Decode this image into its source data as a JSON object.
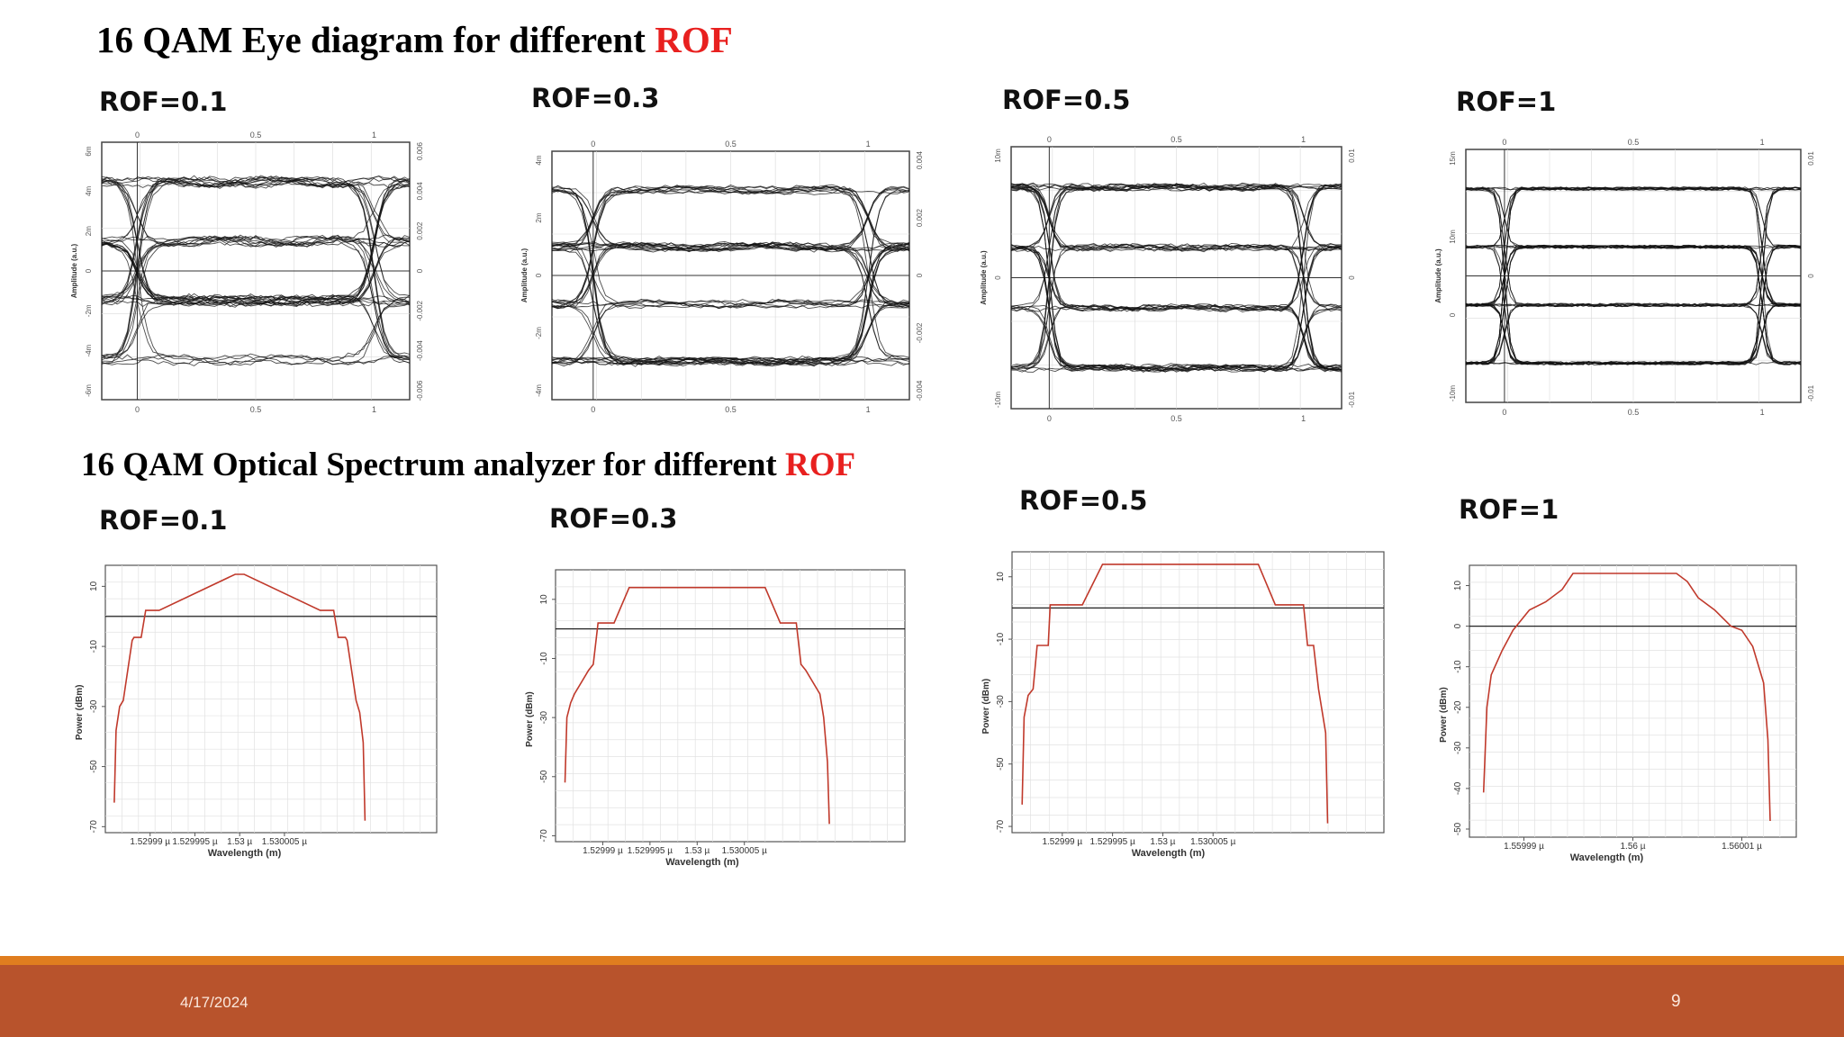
{
  "slide": {
    "eye_title_prefix": "16 QAM Eye diagram for different ",
    "eye_title_accent": "ROF",
    "osa_title_prefix": "16 QAM  Optical Spectrum analyzer for different ",
    "osa_title_accent": "ROF",
    "accent_color": "#e8201f",
    "footer_date": "4/17/2024",
    "page_number": "9"
  },
  "chart_data": [
    {
      "type": "eye",
      "label": "ROF=0.1",
      "rof": 0.1,
      "x_ticks": [
        "0",
        "0.5",
        "1"
      ],
      "y_ticks_left": [
        "6m",
        "4m",
        "2m",
        "0",
        "-2m",
        "-4m",
        "-6m"
      ],
      "y_ticks_right": [
        "0.006",
        "0.004",
        "0.002",
        "0",
        "-0.002",
        "-0.004",
        "-0.006"
      ],
      "ylabel": "Amplitude (a.u.)",
      "levels": [
        -3,
        -1,
        1,
        3
      ]
    },
    {
      "type": "eye",
      "label": "ROF=0.3",
      "rof": 0.3,
      "x_ticks": [
        "0",
        "0.5",
        "1"
      ],
      "y_ticks_left": [
        "4m",
        "2m",
        "0",
        "-2m",
        "-4m"
      ],
      "y_ticks_right": [
        "0.004",
        "0.002",
        "0",
        "-0.002",
        "-0.004"
      ],
      "ylabel": "Amplitude (a.u.)",
      "levels": [
        -3,
        -1,
        1,
        3
      ]
    },
    {
      "type": "eye",
      "label": "ROF=0.5",
      "rof": 0.5,
      "x_ticks": [
        "0",
        "0.5",
        "1"
      ],
      "y_ticks_left": [
        "10m",
        "0",
        "-10m"
      ],
      "y_ticks_right": [
        "0.01",
        "0",
        "-0.01"
      ],
      "ylabel": "Amplitude (a.u.)",
      "levels": [
        -3,
        -1,
        1,
        3
      ]
    },
    {
      "type": "eye",
      "label": "ROF=1",
      "rof": 1,
      "x_ticks": [
        "0",
        "0.5",
        "1"
      ],
      "y_ticks_left": [
        "15m",
        "10m",
        "0",
        "-10m"
      ],
      "y_ticks_right": [
        "0.01",
        "0",
        "-0.01"
      ],
      "ylabel": "Amplitude (a.u.)",
      "levels": [
        -3,
        -1,
        1,
        3
      ]
    },
    {
      "type": "line",
      "label": "ROF=0.1",
      "rof": 0.1,
      "xlabel": "Wavelength (m)",
      "ylabel": "Power (dBm)",
      "x_tick_labels": [
        "1.52999 µ",
        "1.529995 µ",
        "1.53 µ",
        "1.530005 µ"
      ],
      "x_ticks": [
        1.52999,
        1.529995,
        1.53,
        1.530005
      ],
      "xlim": [
        1.529985,
        1.530022
      ],
      "y_ticks": [
        10,
        -10,
        -30,
        -50,
        -70
      ],
      "ylim": [
        -72,
        17
      ],
      "color": "#c0392b",
      "x": [
        1.529986,
        1.5299862,
        1.5299866,
        1.529987,
        1.529988,
        1.5299882,
        1.529989,
        1.5299895,
        1.529991,
        1.5299995,
        1.5300005,
        1.530009,
        1.5300105,
        1.530011,
        1.5300118,
        1.530012,
        1.530013,
        1.5300134,
        1.5300138,
        1.530014
      ],
      "y": [
        -62,
        -38,
        -30,
        -28,
        -8,
        -7,
        -7,
        2,
        2,
        14,
        14,
        2,
        2,
        -7,
        -7,
        -8,
        -28,
        -32,
        -42,
        -68
      ]
    },
    {
      "type": "line",
      "label": "ROF=0.3",
      "rof": 0.3,
      "xlabel": "Wavelength (m)",
      "ylabel": "Power (dBm)",
      "x_tick_labels": [
        "1.52999 µ",
        "1.529995 µ",
        "1.53 µ",
        "1.530005 µ"
      ],
      "x_ticks": [
        1.52999,
        1.529995,
        1.53,
        1.530005
      ],
      "xlim": [
        1.529985,
        1.530022
      ],
      "y_ticks": [
        10,
        -10,
        -30,
        -50,
        -70
      ],
      "ylim": [
        -72,
        20
      ],
      "color": "#c0392b",
      "x": [
        1.529986,
        1.5299862,
        1.5299866,
        1.529987,
        1.5299885,
        1.529989,
        1.5299895,
        1.5299912,
        1.5299928,
        1.5300072,
        1.5300088,
        1.5300105,
        1.530011,
        1.5300115,
        1.530013,
        1.5300134,
        1.5300138,
        1.530014
      ],
      "y": [
        -52,
        -30,
        -25,
        -22,
        -14,
        -12,
        2,
        2,
        14,
        14,
        2,
        2,
        -12,
        -14,
        -22,
        -30,
        -45,
        -66
      ]
    },
    {
      "type": "line",
      "label": "ROF=0.5",
      "rof": 0.5,
      "xlabel": "Wavelength (m)",
      "ylabel": "Power (dBm)",
      "x_tick_labels": [
        "1.52999 µ",
        "1.529995 µ",
        "1.53 µ",
        "1.530005 µ"
      ],
      "x_ticks": [
        1.52999,
        1.529995,
        1.53,
        1.530005
      ],
      "xlim": [
        1.529985,
        1.530022
      ],
      "y_ticks": [
        10,
        -10,
        -30,
        -50,
        -70
      ],
      "ylim": [
        -72,
        18
      ],
      "color": "#c0392b",
      "x": [
        1.529986,
        1.5299862,
        1.5299866,
        1.5299871,
        1.5299875,
        1.529988,
        1.5299886,
        1.5299888,
        1.529992,
        1.529994,
        1.5300095,
        1.5300112,
        1.530014,
        1.5300144,
        1.530015,
        1.5300155,
        1.5300162,
        1.5300164
      ],
      "y": [
        -63,
        -35,
        -28,
        -26,
        -12,
        -12,
        -12,
        1,
        1,
        14,
        14,
        1,
        1,
        -12,
        -12,
        -26,
        -40,
        -69
      ]
    },
    {
      "type": "line",
      "label": "ROF=1",
      "rof": 1,
      "xlabel": "Wavelength (m)",
      "ylabel": "Power (dBm)",
      "x_tick_labels": [
        "1.55999 µ",
        "1.56 µ",
        "1.56001 µ"
      ],
      "x_ticks": [
        1.55999,
        1.56,
        1.56001
      ],
      "xlim": [
        1.559985,
        1.560015
      ],
      "y_ticks": [
        10,
        0,
        -10,
        -20,
        -30,
        -40,
        -50
      ],
      "ylim": [
        -52,
        15
      ],
      "color": "#c0392b",
      "x": [
        1.5599863,
        1.5599866,
        1.559987,
        1.559988,
        1.559989,
        1.5599905,
        1.559992,
        1.5599935,
        1.5599945,
        1.5599955,
        1.560004,
        1.560005,
        1.560006,
        1.5600075,
        1.560009,
        1.56001,
        1.560011,
        1.560012,
        1.5600124,
        1.5600126
      ],
      "y": [
        -41,
        -20,
        -12,
        -6,
        -1,
        4,
        6,
        9,
        13,
        13,
        13,
        11,
        7,
        4,
        0,
        -1,
        -5,
        -14,
        -28,
        -48
      ]
    }
  ]
}
